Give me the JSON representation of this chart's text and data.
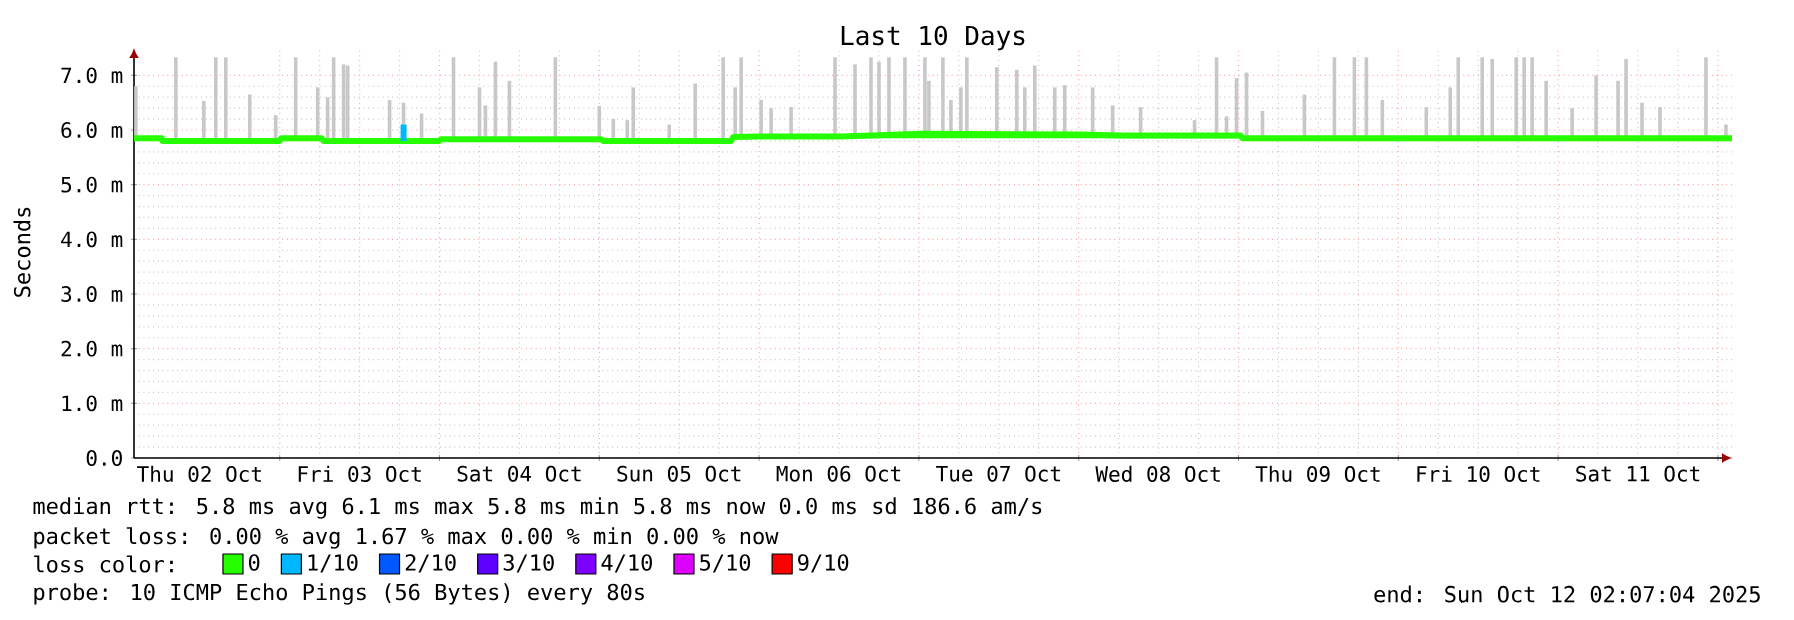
{
  "chart_data": {
    "type": "line",
    "title": "Last 10 Days",
    "ylabel": "Seconds",
    "legend_title": "loss color:",
    "legend": "bottom",
    "grid": true,
    "xlim": [
      "2025-10-02T02:07",
      "2025-10-12T02:07"
    ],
    "ylim": [
      0,
      7.5
    ],
    "xticks": [
      {
        "value": "2025-10-02T12:00",
        "label": "Thu 02 Oct"
      },
      {
        "value": "2025-10-03T00:00",
        "label": null
      },
      {
        "value": "2025-10-03T12:00",
        "label": "Fri 03 Oct"
      },
      {
        "value": "2025-10-04T00:00",
        "label": null
      },
      {
        "value": "2025-10-04T12:00",
        "label": "Sat 04 Oct"
      },
      {
        "value": "2025-10-05T00:00",
        "label": null
      },
      {
        "value": "2025-10-05T12:00",
        "label": "Sun 05 Oct"
      },
      {
        "value": "2025-10-06T00:00",
        "label": null
      },
      {
        "value": "2025-10-06T12:00",
        "label": "Mon 06 Oct"
      },
      {
        "value": "2025-10-07T00:00",
        "label": null
      },
      {
        "value": "2025-10-07T12:00",
        "label": "Tue 07 Oct"
      },
      {
        "value": "2025-10-08T00:00",
        "label": null
      },
      {
        "value": "2025-10-08T12:00",
        "label": "Wed 08 Oct"
      },
      {
        "value": "2025-10-09T00:00",
        "label": null
      },
      {
        "value": "2025-10-09T12:00",
        "label": "Thu 09 Oct"
      },
      {
        "value": "2025-10-10T00:00",
        "label": null
      },
      {
        "value": "2025-10-10T12:00",
        "label": "Fri 10 Oct"
      },
      {
        "value": "2025-10-11T00:00",
        "label": null
      },
      {
        "value": "2025-10-11T12:00",
        "label": "Sat 11 Oct"
      },
      {
        "value": "2025-10-12T00:00",
        "label": null
      }
    ],
    "yticks": [
      {
        "value": 0,
        "label": "0.0"
      },
      {
        "value": 1,
        "label": "1.0 m"
      },
      {
        "value": 2,
        "label": "2.0 m"
      },
      {
        "value": 3,
        "label": "3.0 m"
      },
      {
        "value": 4,
        "label": "4.0 m"
      },
      {
        "value": 5,
        "label": "5.0 m"
      },
      {
        "value": 6,
        "label": "6.0 m"
      },
      {
        "value": 7,
        "label": "7.0 m"
      }
    ],
    "series": [
      {
        "type": "bar",
        "color": "#c8c8c8",
        "x": [
          "2025-10-02T02:24",
          "2025-10-02T08:24",
          "2025-10-02T12:36",
          "2025-10-02T14:24",
          "2025-10-02T15:54",
          "2025-10-02T19:30",
          "2025-10-02T23:24",
          "2025-10-03T02:24",
          "2025-10-03T05:42",
          "2025-10-03T07:12",
          "2025-10-03T08:06",
          "2025-10-03T09:36",
          "2025-10-03T10:12",
          "2025-10-03T16:30",
          "2025-10-03T18:36",
          "2025-10-03T21:18",
          "2025-10-04T02:06",
          "2025-10-04T06:00",
          "2025-10-04T06:54",
          "2025-10-04T08:24",
          "2025-10-04T10:30",
          "2025-10-04T17:24",
          "2025-10-05T00:00",
          "2025-10-05T02:06",
          "2025-10-05T04:12",
          "2025-10-05T05:06",
          "2025-10-05T10:30",
          "2025-10-05T14:24",
          "2025-10-05T18:36",
          "2025-10-05T20:24",
          "2025-10-05T21:18",
          "2025-10-06T00:18",
          "2025-10-06T01:48",
          "2025-10-06T04:48",
          "2025-10-06T11:24",
          "2025-10-06T14:24",
          "2025-10-06T16:48",
          "2025-10-06T18:00",
          "2025-10-06T19:30",
          "2025-10-06T21:54",
          "2025-10-07T00:54",
          "2025-10-07T01:30",
          "2025-10-07T03:36",
          "2025-10-07T04:48",
          "2025-10-07T06:18",
          "2025-10-07T07:12",
          "2025-10-07T11:42",
          "2025-10-07T14:42",
          "2025-10-07T15:54",
          "2025-10-07T17:24",
          "2025-10-07T20:24",
          "2025-10-07T21:54",
          "2025-10-08T02:06",
          "2025-10-08T05:06",
          "2025-10-08T09:18",
          "2025-10-08T17:24",
          "2025-10-08T20:42",
          "2025-10-08T22:12",
          "2025-10-08T23:42",
          "2025-10-09T01:12",
          "2025-10-09T03:36",
          "2025-10-09T09:54",
          "2025-10-09T14:24",
          "2025-10-09T17:24",
          "2025-10-09T19:12",
          "2025-10-09T21:36",
          "2025-10-10T04:12",
          "2025-10-10T07:48",
          "2025-10-10T09:00",
          "2025-10-10T12:36",
          "2025-10-10T14:06",
          "2025-10-10T17:42",
          "2025-10-10T18:54",
          "2025-10-10T20:06",
          "2025-10-10T22:12",
          "2025-10-11T02:06",
          "2025-10-11T05:42",
          "2025-10-11T09:00",
          "2025-10-11T10:12",
          "2025-10-11T12:36",
          "2025-10-11T15:18",
          "2025-10-11T22:12",
          "2025-10-12T01:12"
        ],
        "base": [
          5.85,
          5.85,
          5.85,
          5.85,
          5.85,
          5.85,
          5.85,
          5.85,
          5.85,
          5.85,
          5.85,
          5.85,
          5.85,
          5.85,
          5.85,
          5.85,
          5.85,
          5.85,
          5.85,
          5.85,
          5.85,
          5.85,
          5.85,
          5.85,
          5.85,
          5.85,
          5.85,
          5.85,
          5.85,
          5.85,
          5.85,
          5.85,
          5.85,
          5.85,
          5.85,
          5.85,
          5.85,
          5.85,
          5.85,
          5.85,
          5.85,
          5.85,
          5.85,
          5.85,
          5.85,
          5.85,
          5.85,
          5.85,
          5.85,
          5.85,
          5.85,
          5.85,
          5.85,
          5.85,
          5.85,
          5.85,
          5.85,
          5.85,
          5.85,
          5.85,
          5.85,
          5.85,
          5.85,
          5.85,
          5.85,
          5.85,
          5.85,
          5.85,
          5.85,
          5.85,
          5.85,
          5.85,
          5.85,
          5.85,
          5.85,
          5.85,
          5.85,
          5.85,
          5.85,
          5.85,
          5.85,
          5.85,
          5.85
        ],
        "values": [
          0.95,
          1.48,
          0.68,
          1.48,
          1.48,
          0.8,
          0.42,
          1.48,
          0.93,
          0.75,
          1.48,
          1.35,
          1.33,
          0.7,
          0.65,
          0.45,
          1.48,
          0.93,
          0.6,
          1.4,
          1.05,
          1.48,
          0.59,
          0.35,
          0.33,
          0.93,
          0.25,
          1.0,
          1.48,
          0.93,
          1.48,
          0.7,
          0.55,
          0.57,
          1.48,
          1.35,
          1.48,
          1.4,
          1.48,
          1.48,
          1.48,
          1.05,
          1.48,
          0.7,
          0.93,
          1.48,
          1.3,
          1.25,
          0.93,
          1.33,
          0.93,
          0.97,
          0.93,
          0.6,
          0.57,
          0.33,
          1.48,
          0.4,
          1.1,
          1.2,
          0.5,
          0.8,
          1.48,
          1.48,
          1.48,
          0.7,
          0.57,
          0.93,
          1.48,
          1.48,
          1.45,
          1.48,
          1.48,
          1.48,
          1.05,
          0.55,
          1.15,
          1.05,
          1.45,
          0.65,
          0.57,
          1.48,
          0.25
        ]
      },
      {
        "name": "0",
        "color": "#26ff00",
        "x": [
          "2025-10-02T02:07",
          "2025-10-02T06:18",
          "2025-10-02T06:24",
          "2025-10-03T00:00",
          "2025-10-03T00:12",
          "2025-10-03T06:18",
          "2025-10-03T06:36",
          "2025-10-03T18:18",
          "2025-10-04T00:00",
          "2025-10-04T00:12",
          "2025-10-05T00:18",
          "2025-10-05T00:36",
          "2025-10-05T19:48",
          "2025-10-05T20:06",
          "2025-10-06T00:18",
          "2025-10-06T12:18",
          "2025-10-07T00:18",
          "2025-10-08T00:18",
          "2025-10-08T06:18",
          "2025-10-09T00:18",
          "2025-10-09T00:36",
          "2025-10-10T00:18",
          "2025-10-12T02:07"
        ],
        "values": [
          5.85,
          5.85,
          5.8,
          5.8,
          5.85,
          5.85,
          5.8,
          5.8,
          5.8,
          5.83,
          5.83,
          5.8,
          5.8,
          5.87,
          5.88,
          5.88,
          5.93,
          5.92,
          5.9,
          5.9,
          5.85,
          5.85,
          5.85
        ]
      },
      {
        "name": "1/10",
        "color": "#00b8ff",
        "x": [
          "2025-10-03T18:36",
          "2025-10-03T18:36"
        ],
        "values": [
          5.8,
          6.1
        ]
      },
      {
        "name": "2/10",
        "color": "#0059ff"
      },
      {
        "name": "3/10",
        "color": "#5e00ff"
      },
      {
        "name": "4/10",
        "color": "#7e00ff"
      },
      {
        "name": "5/10",
        "color": "#dd00ff"
      },
      {
        "name": "9/10",
        "color": "#ff0000"
      }
    ],
    "annotations": [
      "median rtt: 5.8 ms avg 6.1 ms max 5.8 ms min 5.8 ms now 0.0 ms sd 186.6 am/s",
      "packet loss: 0.00 % avg 1.67 % max 0.00 % min 0.00 % now",
      "probe: 10 ICMP Echo Pings (56 Bytes) every 80s",
      "end: Sun Oct 12 02:07:04 2025"
    ]
  }
}
